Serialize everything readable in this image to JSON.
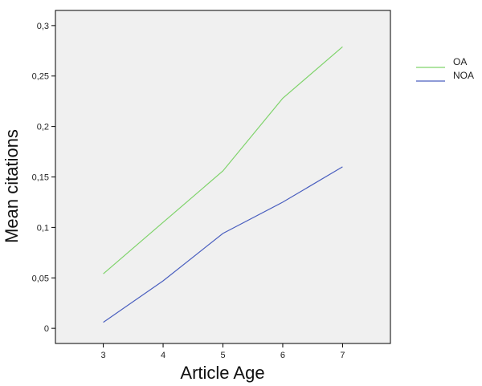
{
  "chart_data": {
    "type": "line",
    "title": "",
    "xlabel": "Article Age",
    "ylabel": "Mean citations",
    "x": [
      3,
      4,
      5,
      6,
      7
    ],
    "x_ticks": [
      3,
      4,
      5,
      6,
      7
    ],
    "x_tick_labels": [
      "3",
      "4",
      "5",
      "6",
      "7"
    ],
    "xlim": [
      2.2,
      7.8
    ],
    "y_ticks": [
      0,
      0.05,
      0.1,
      0.15,
      0.2,
      0.25,
      0.3
    ],
    "y_tick_labels": [
      "0",
      "0,05",
      "0,1",
      "0,15",
      "0,2",
      "0,25",
      "0,3"
    ],
    "ylim": [
      -0.015,
      0.315
    ],
    "grid": false,
    "legend_position": "right",
    "plot_background": "#f0f0f0",
    "series": [
      {
        "name": "OA",
        "color": "#7fd36b",
        "values": [
          0.054,
          0.105,
          0.156,
          0.228,
          0.279
        ]
      },
      {
        "name": "NOA",
        "color": "#4a5fbf",
        "values": [
          0.006,
          0.047,
          0.094,
          0.125,
          0.16
        ]
      }
    ]
  }
}
